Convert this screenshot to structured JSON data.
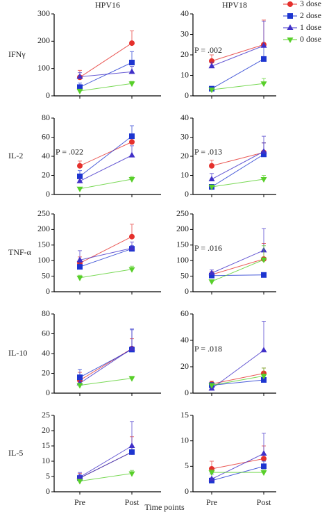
{
  "xlabel": "Time points",
  "legend": [
    {
      "name": "3 dose",
      "color": "#e5302c",
      "marker": "circle"
    },
    {
      "name": "2 dose",
      "color": "#1d35d0",
      "marker": "square"
    },
    {
      "name": "1 dose",
      "color": "#4030c8",
      "marker": "triangle-up"
    },
    {
      "name": "0 dose",
      "color": "#58cf2a",
      "marker": "triangle-down"
    }
  ],
  "chart_data": [
    {
      "type": "line",
      "title": "HPV16",
      "ylabel": "IFNγ",
      "ylim": [
        0,
        300
      ],
      "yticks": [
        0,
        100,
        200,
        300
      ],
      "series": [
        {
          "values": [
            68,
            193
          ],
          "errors": [
            25,
            45
          ]
        },
        {
          "values": [
            32,
            122
          ],
          "errors": [
            15,
            40
          ]
        },
        {
          "values": [
            70,
            88
          ],
          "errors": [
            15,
            20
          ]
        },
        {
          "values": [
            18,
            45
          ],
          "errors": [
            5,
            8
          ]
        }
      ]
    },
    {
      "type": "line",
      "title": "HPV18",
      "ylim": [
        0,
        40
      ],
      "yticks": [
        0,
        10,
        20,
        30,
        40
      ],
      "annotation": "P = .002",
      "series": [
        {
          "values": [
            17,
            25
          ],
          "errors": [
            3,
            12
          ]
        },
        {
          "values": [
            3.5,
            18
          ],
          "errors": [
            1,
            6
          ]
        },
        {
          "values": [
            14.5,
            24.5
          ],
          "errors": [
            2,
            12
          ]
        },
        {
          "values": [
            3,
            6
          ],
          "errors": [
            0.5,
            2.5
          ]
        }
      ]
    },
    {
      "type": "line",
      "ylabel": "IL-2",
      "ylim": [
        0,
        80
      ],
      "yticks": [
        0,
        20,
        40,
        60,
        80
      ],
      "annotation": "P = .022",
      "series": [
        {
          "values": [
            30,
            55
          ],
          "errors": [
            5,
            8
          ]
        },
        {
          "values": [
            19,
            61
          ],
          "errors": [
            6,
            11
          ]
        },
        {
          "values": [
            14,
            41
          ],
          "errors": [
            3,
            10
          ]
        },
        {
          "values": [
            6,
            16
          ],
          "errors": [
            1,
            3
          ]
        }
      ]
    },
    {
      "type": "line",
      "ylim": [
        0,
        40
      ],
      "yticks": [
        0,
        10,
        20,
        30,
        40
      ],
      "annotation": "P = .013",
      "series": [
        {
          "values": [
            15,
            22
          ],
          "errors": [
            3,
            5
          ]
        },
        {
          "values": [
            4,
            21
          ],
          "errors": [
            1,
            6
          ]
        },
        {
          "values": [
            8,
            22.5
          ],
          "errors": [
            3,
            8
          ]
        },
        {
          "values": [
            4,
            8
          ],
          "errors": [
            1,
            2
          ]
        }
      ]
    },
    {
      "type": "line",
      "ylabel": "TNF-α",
      "ylim": [
        0,
        250
      ],
      "yticks": [
        0,
        50,
        100,
        150,
        200,
        250
      ],
      "series": [
        {
          "values": [
            92,
            177
          ],
          "errors": [
            20,
            40
          ]
        },
        {
          "values": [
            80,
            138
          ],
          "errors": [
            15,
            10
          ]
        },
        {
          "values": [
            102,
            140
          ],
          "errors": [
            30,
            20
          ]
        },
        {
          "values": [
            45,
            72
          ],
          "errors": [
            8,
            10
          ]
        }
      ]
    },
    {
      "type": "line",
      "ylim": [
        0,
        250
      ],
      "yticks": [
        0,
        50,
        100,
        150,
        200,
        250
      ],
      "annotation": "P = .016",
      "series": [
        {
          "values": [
            55,
            105
          ],
          "errors": [
            10,
            50
          ]
        },
        {
          "values": [
            52,
            54
          ],
          "errors": [
            5,
            3
          ]
        },
        {
          "values": [
            60,
            133
          ],
          "errors": [
            10,
            70
          ]
        },
        {
          "values": [
            33,
            103
          ],
          "errors": [
            5,
            45
          ]
        }
      ]
    },
    {
      "type": "line",
      "ylabel": "IL-10",
      "ylim": [
        0,
        80
      ],
      "yticks": [
        0,
        20,
        40,
        60,
        80
      ],
      "series": [
        {
          "values": [
            13,
            45
          ],
          "errors": [
            8,
            10
          ]
        },
        {
          "values": [
            16,
            44
          ],
          "errors": [
            8,
            20
          ]
        },
        {
          "values": [
            10,
            45
          ],
          "errors": [
            5,
            20
          ]
        },
        {
          "values": [
            8,
            15
          ],
          "errors": [
            2,
            2
          ]
        }
      ]
    },
    {
      "type": "line",
      "ylim": [
        0,
        60
      ],
      "yticks": [
        0,
        20,
        40,
        60
      ],
      "annotation": "P = .018",
      "series": [
        {
          "values": [
            7,
            15
          ],
          "errors": [
            2,
            4
          ]
        },
        {
          "values": [
            6,
            10
          ],
          "errors": [
            2,
            3
          ]
        },
        {
          "values": [
            3.5,
            32.5
          ],
          "errors": [
            4,
            22
          ]
        },
        {
          "values": [
            6,
            13
          ],
          "errors": [
            1,
            6
          ]
        }
      ]
    },
    {
      "type": "line",
      "ylabel": "IL-5",
      "categories": [
        "Pre",
        "Post"
      ],
      "ylim": [
        0,
        25
      ],
      "yticks": [
        0,
        5,
        10,
        15,
        20,
        25
      ],
      "series": [
        {
          "values": [
            4.5,
            13
          ],
          "errors": [
            1.5,
            5
          ]
        },
        {
          "values": [
            4.5,
            13
          ],
          "errors": [
            1,
            2
          ]
        },
        {
          "values": [
            4.8,
            15
          ],
          "errors": [
            1.5,
            8
          ]
        },
        {
          "values": [
            3.5,
            6
          ],
          "errors": [
            0.5,
            1
          ]
        }
      ]
    },
    {
      "type": "line",
      "categories": [
        "Pre",
        "Post"
      ],
      "ylim": [
        0,
        15
      ],
      "yticks": [
        0,
        5,
        10,
        15
      ],
      "series": [
        {
          "values": [
            4.5,
            6.5
          ],
          "errors": [
            1.5,
            2.5
          ]
        },
        {
          "values": [
            2.2,
            5
          ],
          "errors": [
            0.5,
            1
          ]
        },
        {
          "values": [
            2.5,
            7.5
          ],
          "errors": [
            1,
            4
          ]
        },
        {
          "values": [
            3.8,
            3.8
          ],
          "errors": [
            0.5,
            0.5
          ]
        }
      ]
    }
  ]
}
